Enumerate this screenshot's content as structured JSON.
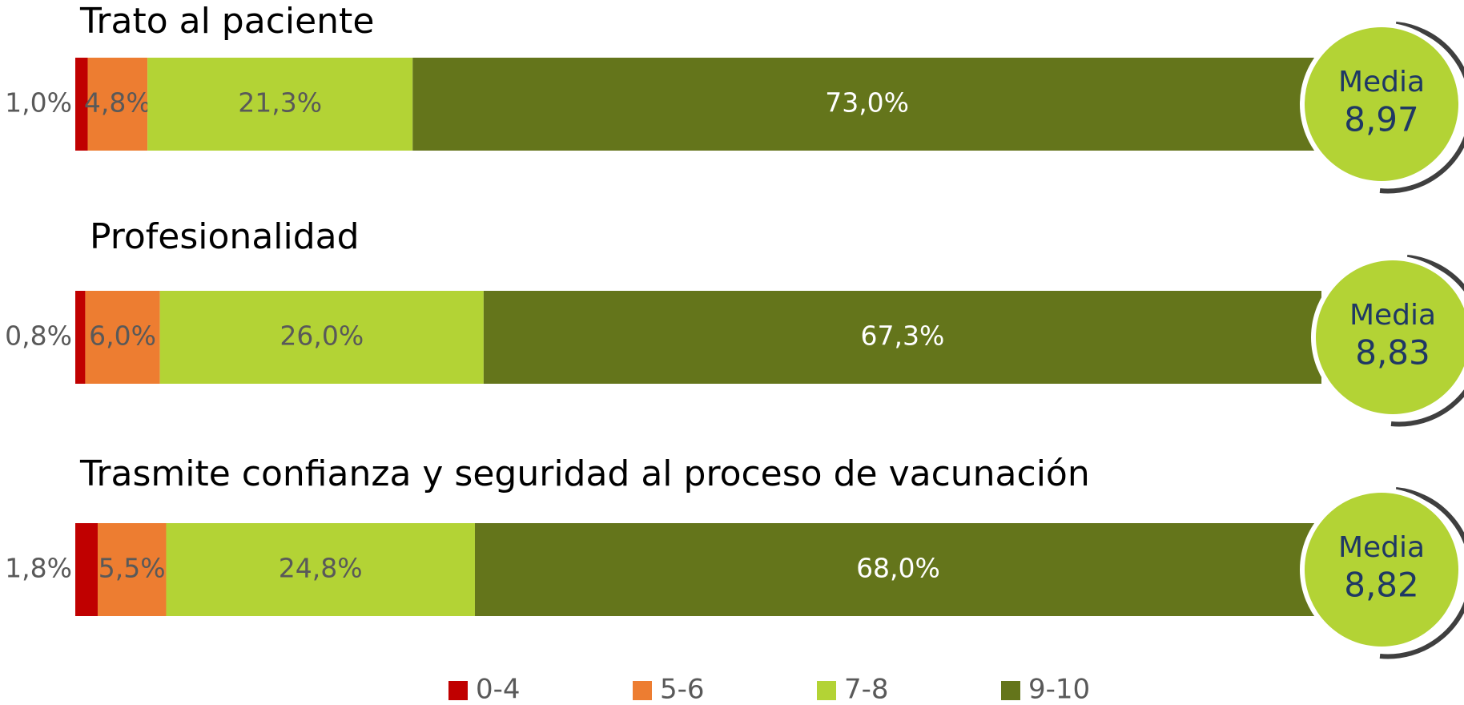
{
  "chart_data": {
    "type": "bar",
    "orientation": "horizontal",
    "stacked": true,
    "categories": [
      "Trato al paciente",
      "Profesionalidad",
      "Trasmite confianza y seguridad al proceso de vacunación"
    ],
    "series": [
      {
        "name": "0-4",
        "color": "#c00000",
        "values": [
          1.0,
          0.8,
          1.8
        ],
        "value_labels": [
          "1,0%",
          "0,8%",
          "1,8%"
        ]
      },
      {
        "name": "5-6",
        "color": "#ed7d31",
        "values": [
          4.8,
          6.0,
          5.5
        ],
        "value_labels": [
          "4,8%",
          "6,0%",
          "5,5%"
        ]
      },
      {
        "name": "7-8",
        "color": "#b3d335",
        "values": [
          21.3,
          26.0,
          24.8
        ],
        "value_labels": [
          "21,3%",
          "26,0%",
          "24,8%"
        ]
      },
      {
        "name": "9-10",
        "color": "#64751b",
        "values": [
          73.0,
          67.3,
          68.0
        ],
        "value_labels": [
          "73,0%",
          "67,3%",
          "68,0%"
        ]
      }
    ],
    "mean_title": "Media",
    "means": [
      8.97,
      8.83,
      8.82
    ],
    "mean_labels": [
      "8,97",
      "8,83",
      "8,82"
    ],
    "legend": "bottom"
  }
}
